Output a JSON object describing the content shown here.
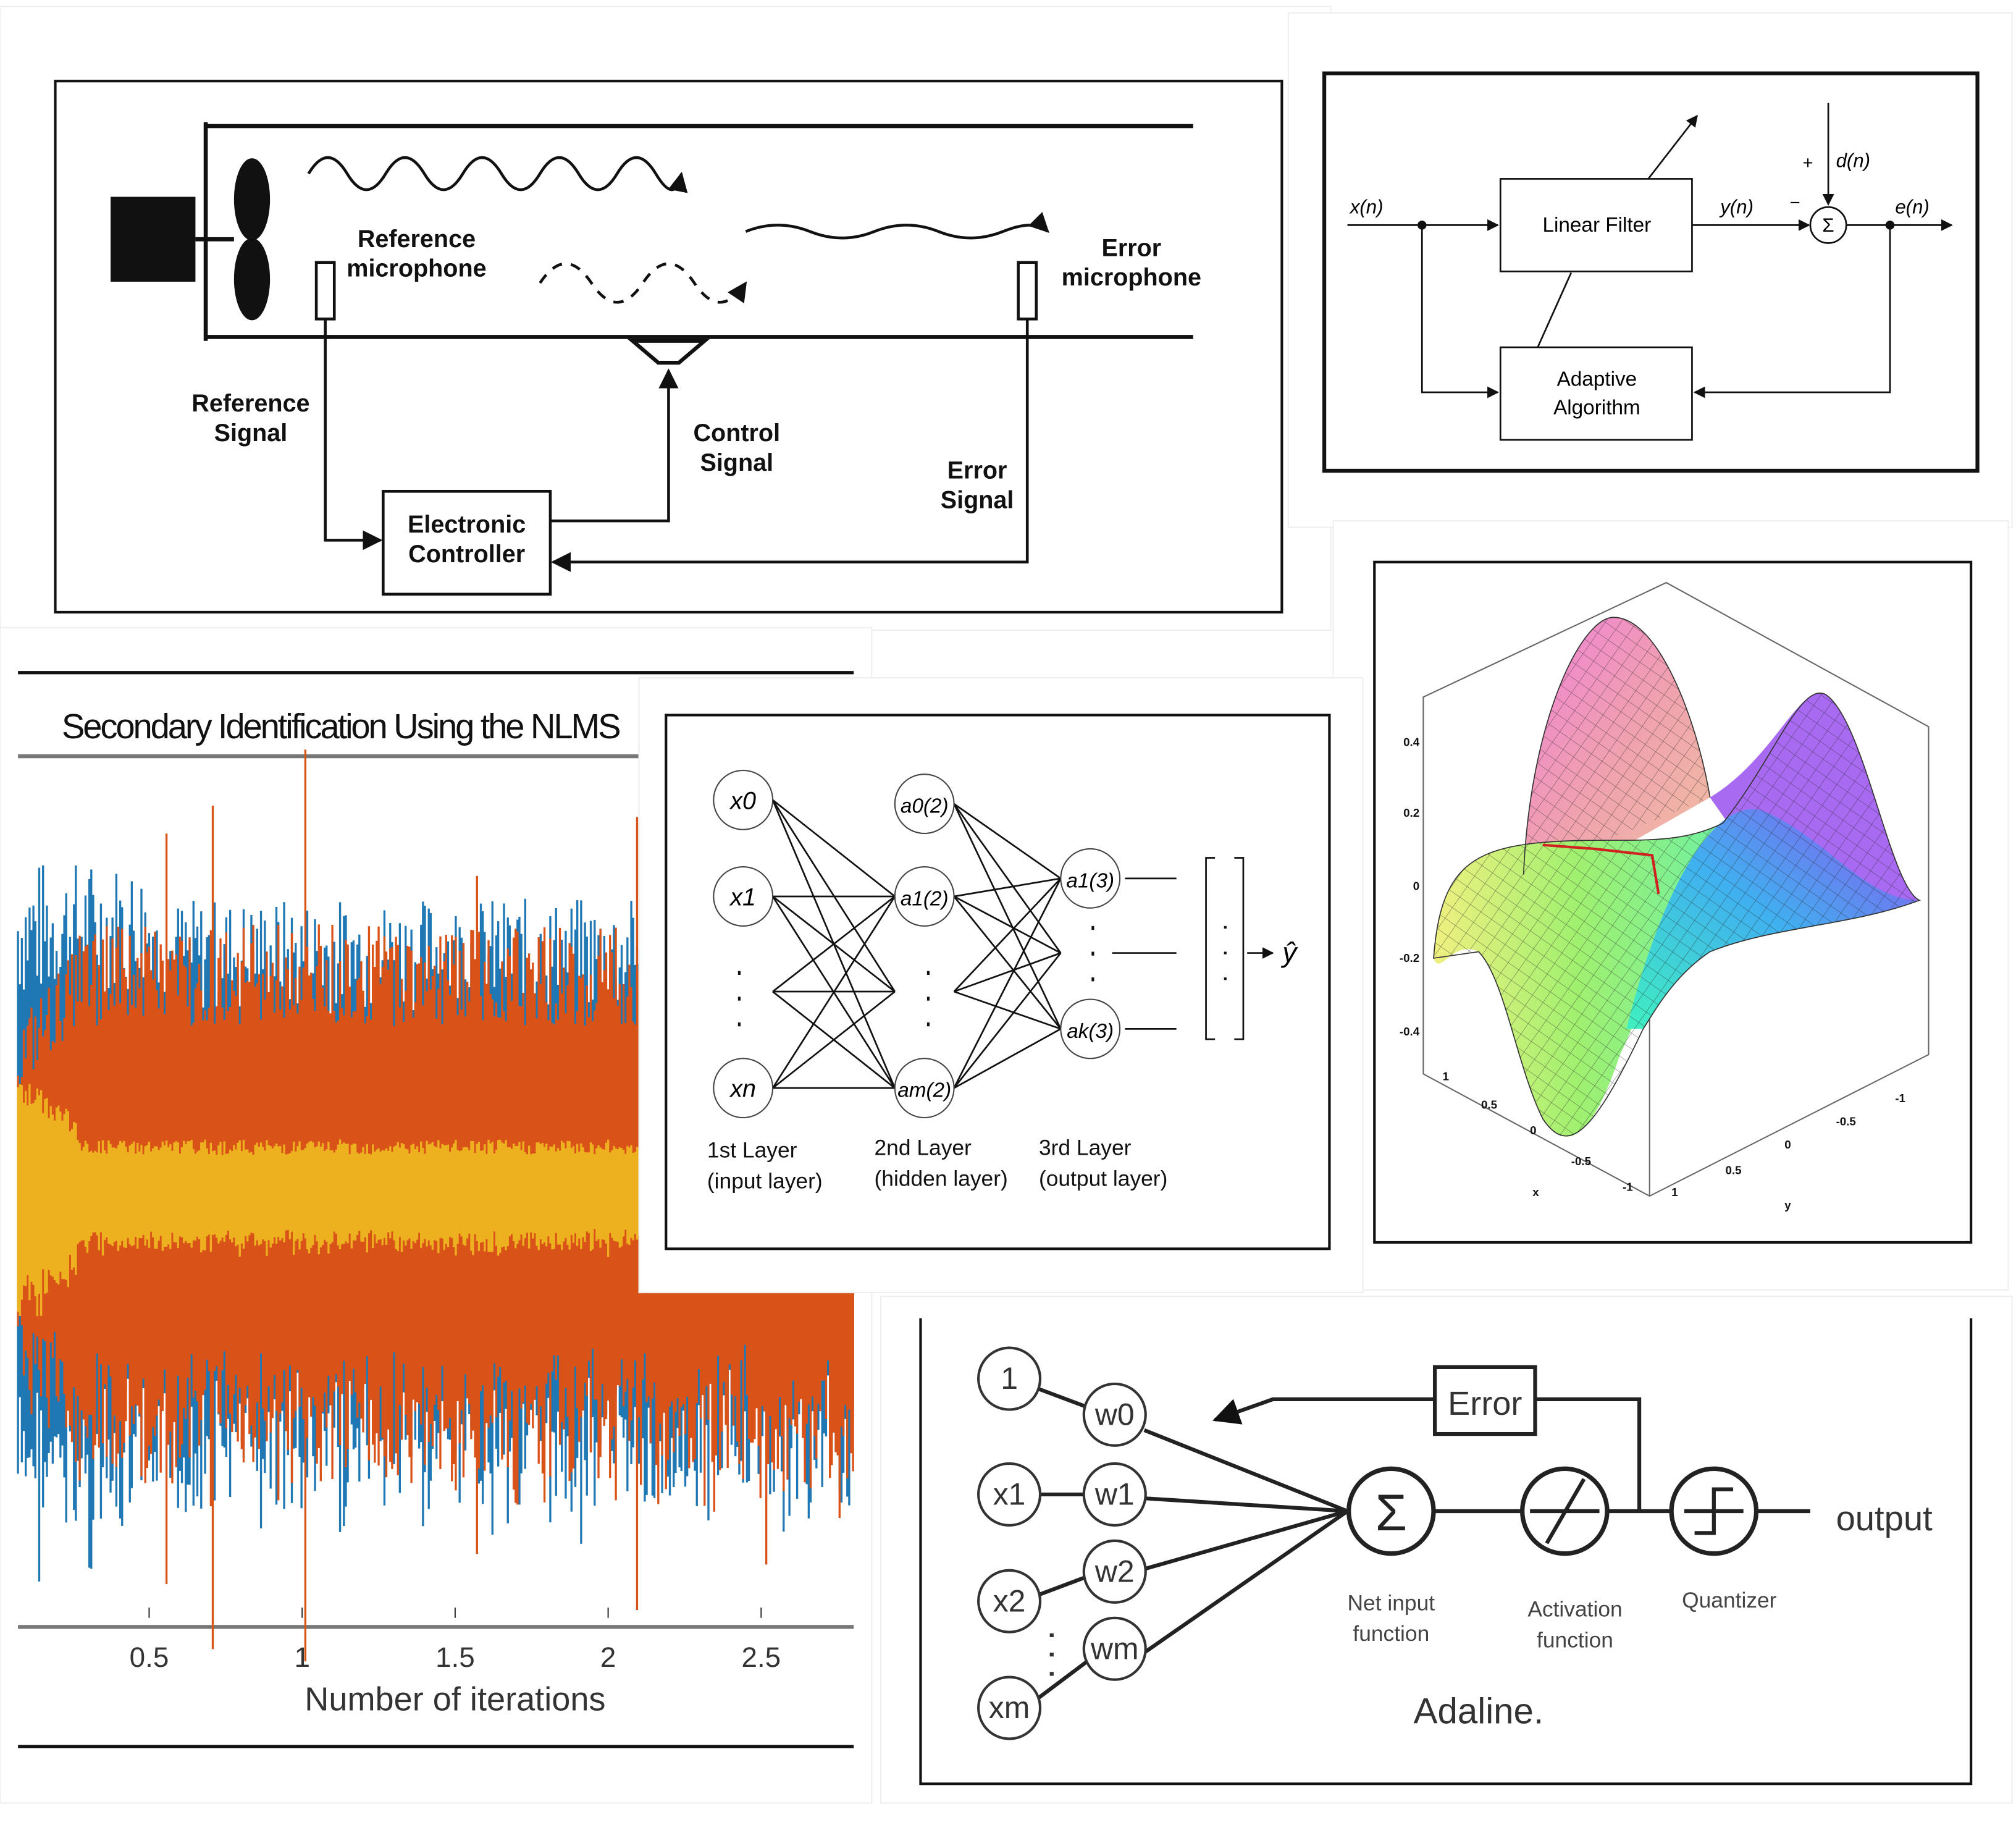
{
  "anc_diagram": {
    "reference_microphone": [
      "Reference",
      "microphone"
    ],
    "error_microphone": [
      "Error",
      "microphone"
    ],
    "reference_signal": [
      "Reference",
      "Signal"
    ],
    "control_signal": [
      "Control",
      "Signal"
    ],
    "error_signal": [
      "Error",
      "Signal"
    ],
    "controller": [
      "Electronic",
      "Controller"
    ]
  },
  "adaptive_filter": {
    "input": "x(n)",
    "linear_filter": "Linear Filter",
    "output": "y(n)",
    "desired": "d(n)",
    "plus": "+",
    "minus": "−",
    "sum": "Σ",
    "error": "e(n)",
    "algorithm": [
      "Adaptive",
      "Algorithm"
    ]
  },
  "surface_plot": {
    "z_ticks": [
      "0.4",
      "0.2",
      "0",
      "-0.2",
      "-0.4"
    ],
    "x_ticks": [
      "1",
      "0.5",
      "0",
      "-0.5",
      "-1"
    ],
    "y_ticks": [
      "1",
      "0.5",
      "0",
      "-0.5",
      "-1"
    ],
    "x_label": "x",
    "y_label": "y",
    "colors": [
      "#f070d0",
      "#9a50f0",
      "#40c0f0",
      "#a0f070",
      "#f0f080"
    ]
  },
  "nlms_plot": {
    "title": "Secondary Identification Using the NLMS",
    "x_ticks": [
      "0.5",
      "1",
      "1.5",
      "2",
      "2.5"
    ],
    "x_label": "Number of iterations",
    "series_colors": [
      "#1f77b4",
      "#d95319",
      "#edb120"
    ]
  },
  "neural_net": {
    "input_nodes": [
      "x0",
      "x1",
      "xn"
    ],
    "hidden_nodes": [
      "a0(2)",
      "a1(2)",
      "am(2)"
    ],
    "output_nodes": [
      "a1(3)",
      "ak(3)"
    ],
    "output": "ŷ",
    "layers": [
      {
        "name": "1st Layer",
        "sub": "(input layer)"
      },
      {
        "name": "2nd Layer",
        "sub": "(hidden layer)"
      },
      {
        "name": "3rd Layer",
        "sub": "(output layer)"
      }
    ]
  },
  "adaline": {
    "inputs": [
      "1",
      "x1",
      "x2",
      "xm"
    ],
    "weights": [
      "w0",
      "w1",
      "w2",
      "wm"
    ],
    "error": "Error",
    "net_input": [
      "Net input",
      "function"
    ],
    "activation": [
      "Activation",
      "function"
    ],
    "quantizer": "Quantizer",
    "output": "output",
    "title": "Adaline."
  }
}
